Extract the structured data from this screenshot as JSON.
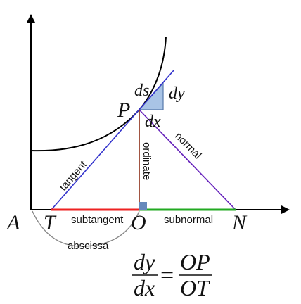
{
  "labels": {
    "A": "A",
    "T": "T",
    "O": "O",
    "N": "N",
    "P": "P",
    "ds": "ds",
    "dy": "dy",
    "dx": "dx",
    "tangent": "tangent",
    "normal": "normal",
    "ordinate": "ordinate",
    "subtangent": "subtangent",
    "subnormal": "subnormal",
    "abscissa": "abscissa"
  },
  "formula": {
    "lhs_num": "dy",
    "lhs_den": "dx",
    "equals": "=",
    "rhs_num": "OP",
    "rhs_den": "OT"
  },
  "colors": {
    "axes": "#000000",
    "curve": "#000000",
    "tangent": "#3333cc",
    "normal": "#6622bb",
    "ordinate": "#8b2a12",
    "subtangent": "#ee2222",
    "subnormal": "#22aa22",
    "triangle_fill": "#a9c4e6",
    "triangle_stroke": "#5577aa",
    "right_angle_fill": "#6688bb",
    "abscissa_arc": "#888888"
  }
}
